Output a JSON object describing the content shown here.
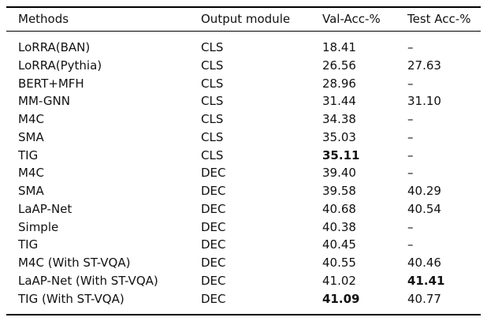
{
  "table": {
    "headers": {
      "method": "Methods",
      "module": "Output module",
      "val": "Val-Acc-%",
      "test": "Test Acc-%"
    },
    "rows": [
      {
        "method": "LoRRA(BAN)",
        "module": "CLS",
        "val": "18.41",
        "test": "–"
      },
      {
        "method": "LoRRA(Pythia)",
        "module": "CLS",
        "val": "26.56",
        "test": "27.63"
      },
      {
        "method": "BERT+MFH",
        "module": "CLS",
        "val": "28.96",
        "test": "–"
      },
      {
        "method": "MM-GNN",
        "module": "CLS",
        "val": "31.44",
        "test": "31.10"
      },
      {
        "method": "M4C",
        "module": "CLS",
        "val": "34.38",
        "test": "–"
      },
      {
        "method": "SMA",
        "module": "CLS",
        "val": "35.03",
        "test": "–"
      },
      {
        "method": "TIG",
        "module": "CLS",
        "val": "35.11",
        "test": "–",
        "val_bold": true
      },
      {
        "method": "M4C",
        "module": "DEC",
        "val": "39.40",
        "test": "–"
      },
      {
        "method": "SMA",
        "module": "DEC",
        "val": "39.58",
        "test": "40.29"
      },
      {
        "method": "LaAP-Net",
        "module": "DEC",
        "val": "40.68",
        "test": "40.54"
      },
      {
        "method": "Simple",
        "module": "DEC",
        "val": "40.38",
        "test": "–"
      },
      {
        "method": "TIG",
        "module": "DEC",
        "val": "40.45",
        "test": "–"
      },
      {
        "method": "M4C (With ST-VQA)",
        "module": "DEC",
        "val": "40.55",
        "test": "40.46"
      },
      {
        "method": "LaAP-Net (With ST-VQA)",
        "module": "DEC",
        "val": "41.02",
        "test": "41.41",
        "test_bold": true
      },
      {
        "method": "TIG (With ST-VQA)",
        "module": "DEC",
        "val": "41.09",
        "test": "40.77",
        "val_bold": true
      }
    ]
  }
}
